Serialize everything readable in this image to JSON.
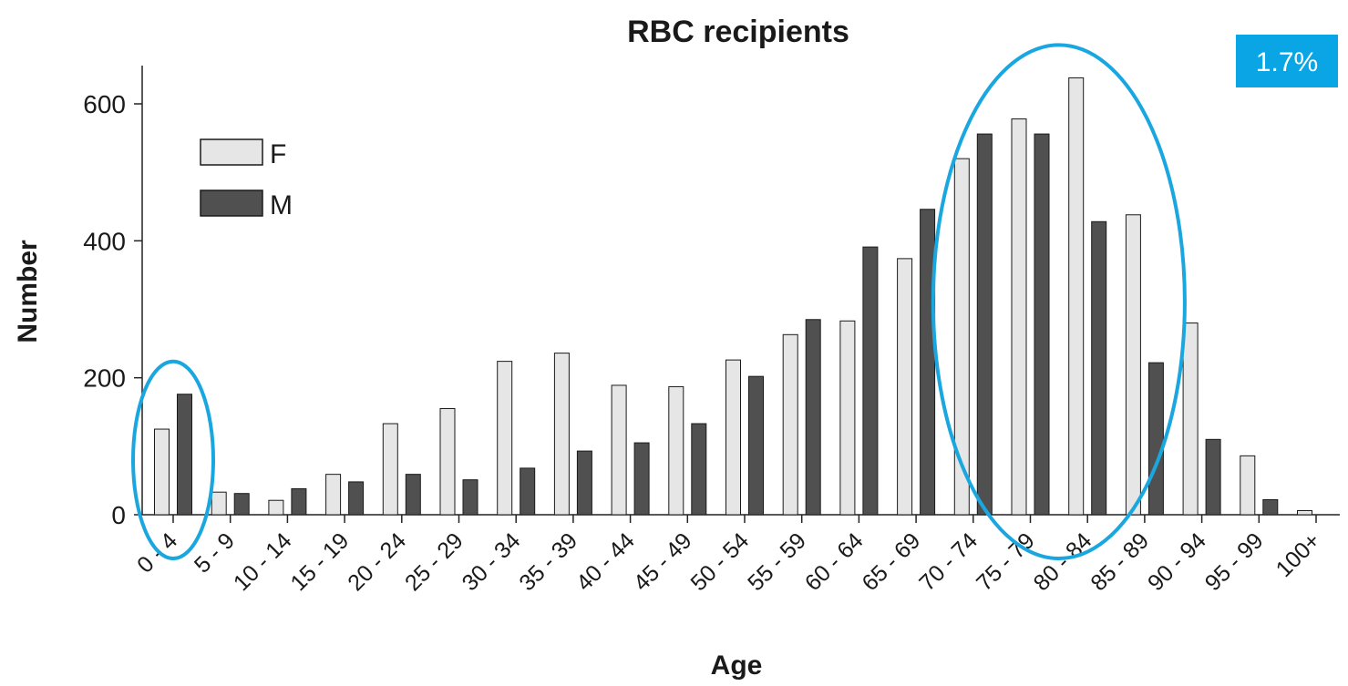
{
  "chart_data": {
    "type": "bar",
    "title": "RBC recipients",
    "xlabel": "Age",
    "ylabel": "Number",
    "ylim": [
      0,
      660
    ],
    "yticks": [
      0,
      200,
      400,
      600
    ],
    "grid": false,
    "legend_position": "top-left",
    "categories": [
      "0 - 4",
      "5 - 9",
      "10 - 14",
      "15 - 19",
      "20 - 24",
      "25 - 29",
      "30 - 34",
      "35 - 39",
      "40 - 44",
      "45 - 49",
      "50 - 54",
      "55 - 59",
      "60 - 64",
      "65 - 69",
      "70 - 74",
      "75 - 79",
      "80 - 84",
      "85 - 89",
      "90 - 94",
      "95 - 99",
      "100+"
    ],
    "series": [
      {
        "name": "F",
        "color": "#e6e6e6",
        "values": [
          125,
          33,
          21,
          59,
          133,
          155,
          224,
          236,
          189,
          187,
          226,
          263,
          283,
          374,
          520,
          578,
          638,
          438,
          280,
          86,
          6
        ]
      },
      {
        "name": "M",
        "color": "#505050",
        "values": [
          176,
          31,
          38,
          48,
          59,
          51,
          68,
          93,
          105,
          133,
          202,
          285,
          391,
          446,
          556,
          556,
          428,
          222,
          110,
          22,
          0
        ]
      }
    ],
    "annotations": {
      "badge": {
        "text": "1.7%",
        "color": "#0aa5e4"
      },
      "highlight_color": "#1aa7e0",
      "highlight_groups": [
        [
          "0 - 4"
        ],
        [
          "70 - 74",
          "75 - 79",
          "80 - 84",
          "85 - 89"
        ]
      ]
    }
  }
}
